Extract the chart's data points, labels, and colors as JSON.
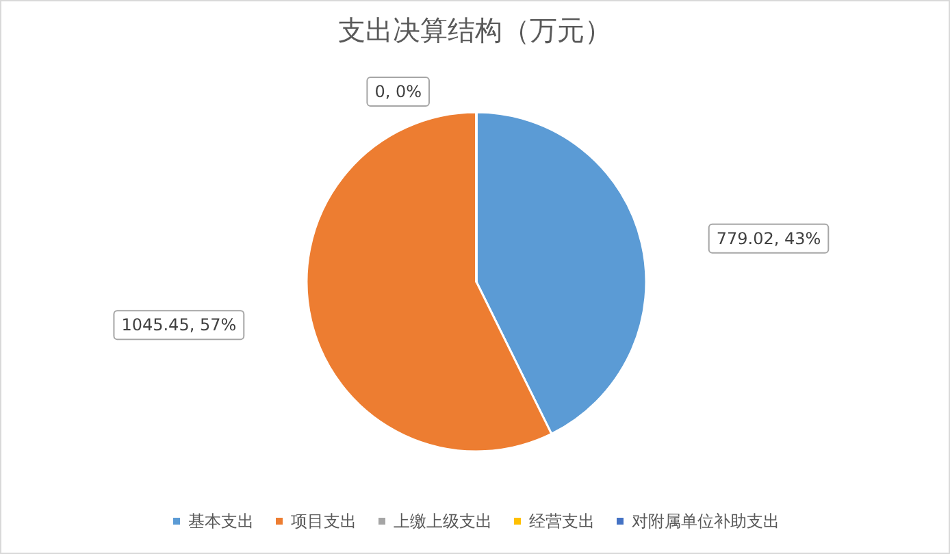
{
  "chart_data": {
    "type": "pie",
    "title": "支出决算结构（万元）",
    "categories": [
      "基本支出",
      "项目支出",
      "上缴上级支出",
      "经营支出",
      "对附属单位补助支出"
    ],
    "values": [
      779.02,
      1045.45,
      0,
      0,
      0
    ],
    "colors": [
      "#5b9bd5",
      "#ed7d31",
      "#a5a5a5",
      "#ffc000",
      "#4472c4"
    ],
    "value_labels": [
      "779.02, 43%",
      "1045.45, 57%",
      "0, 0%",
      null,
      null
    ],
    "legend": "bottom"
  }
}
